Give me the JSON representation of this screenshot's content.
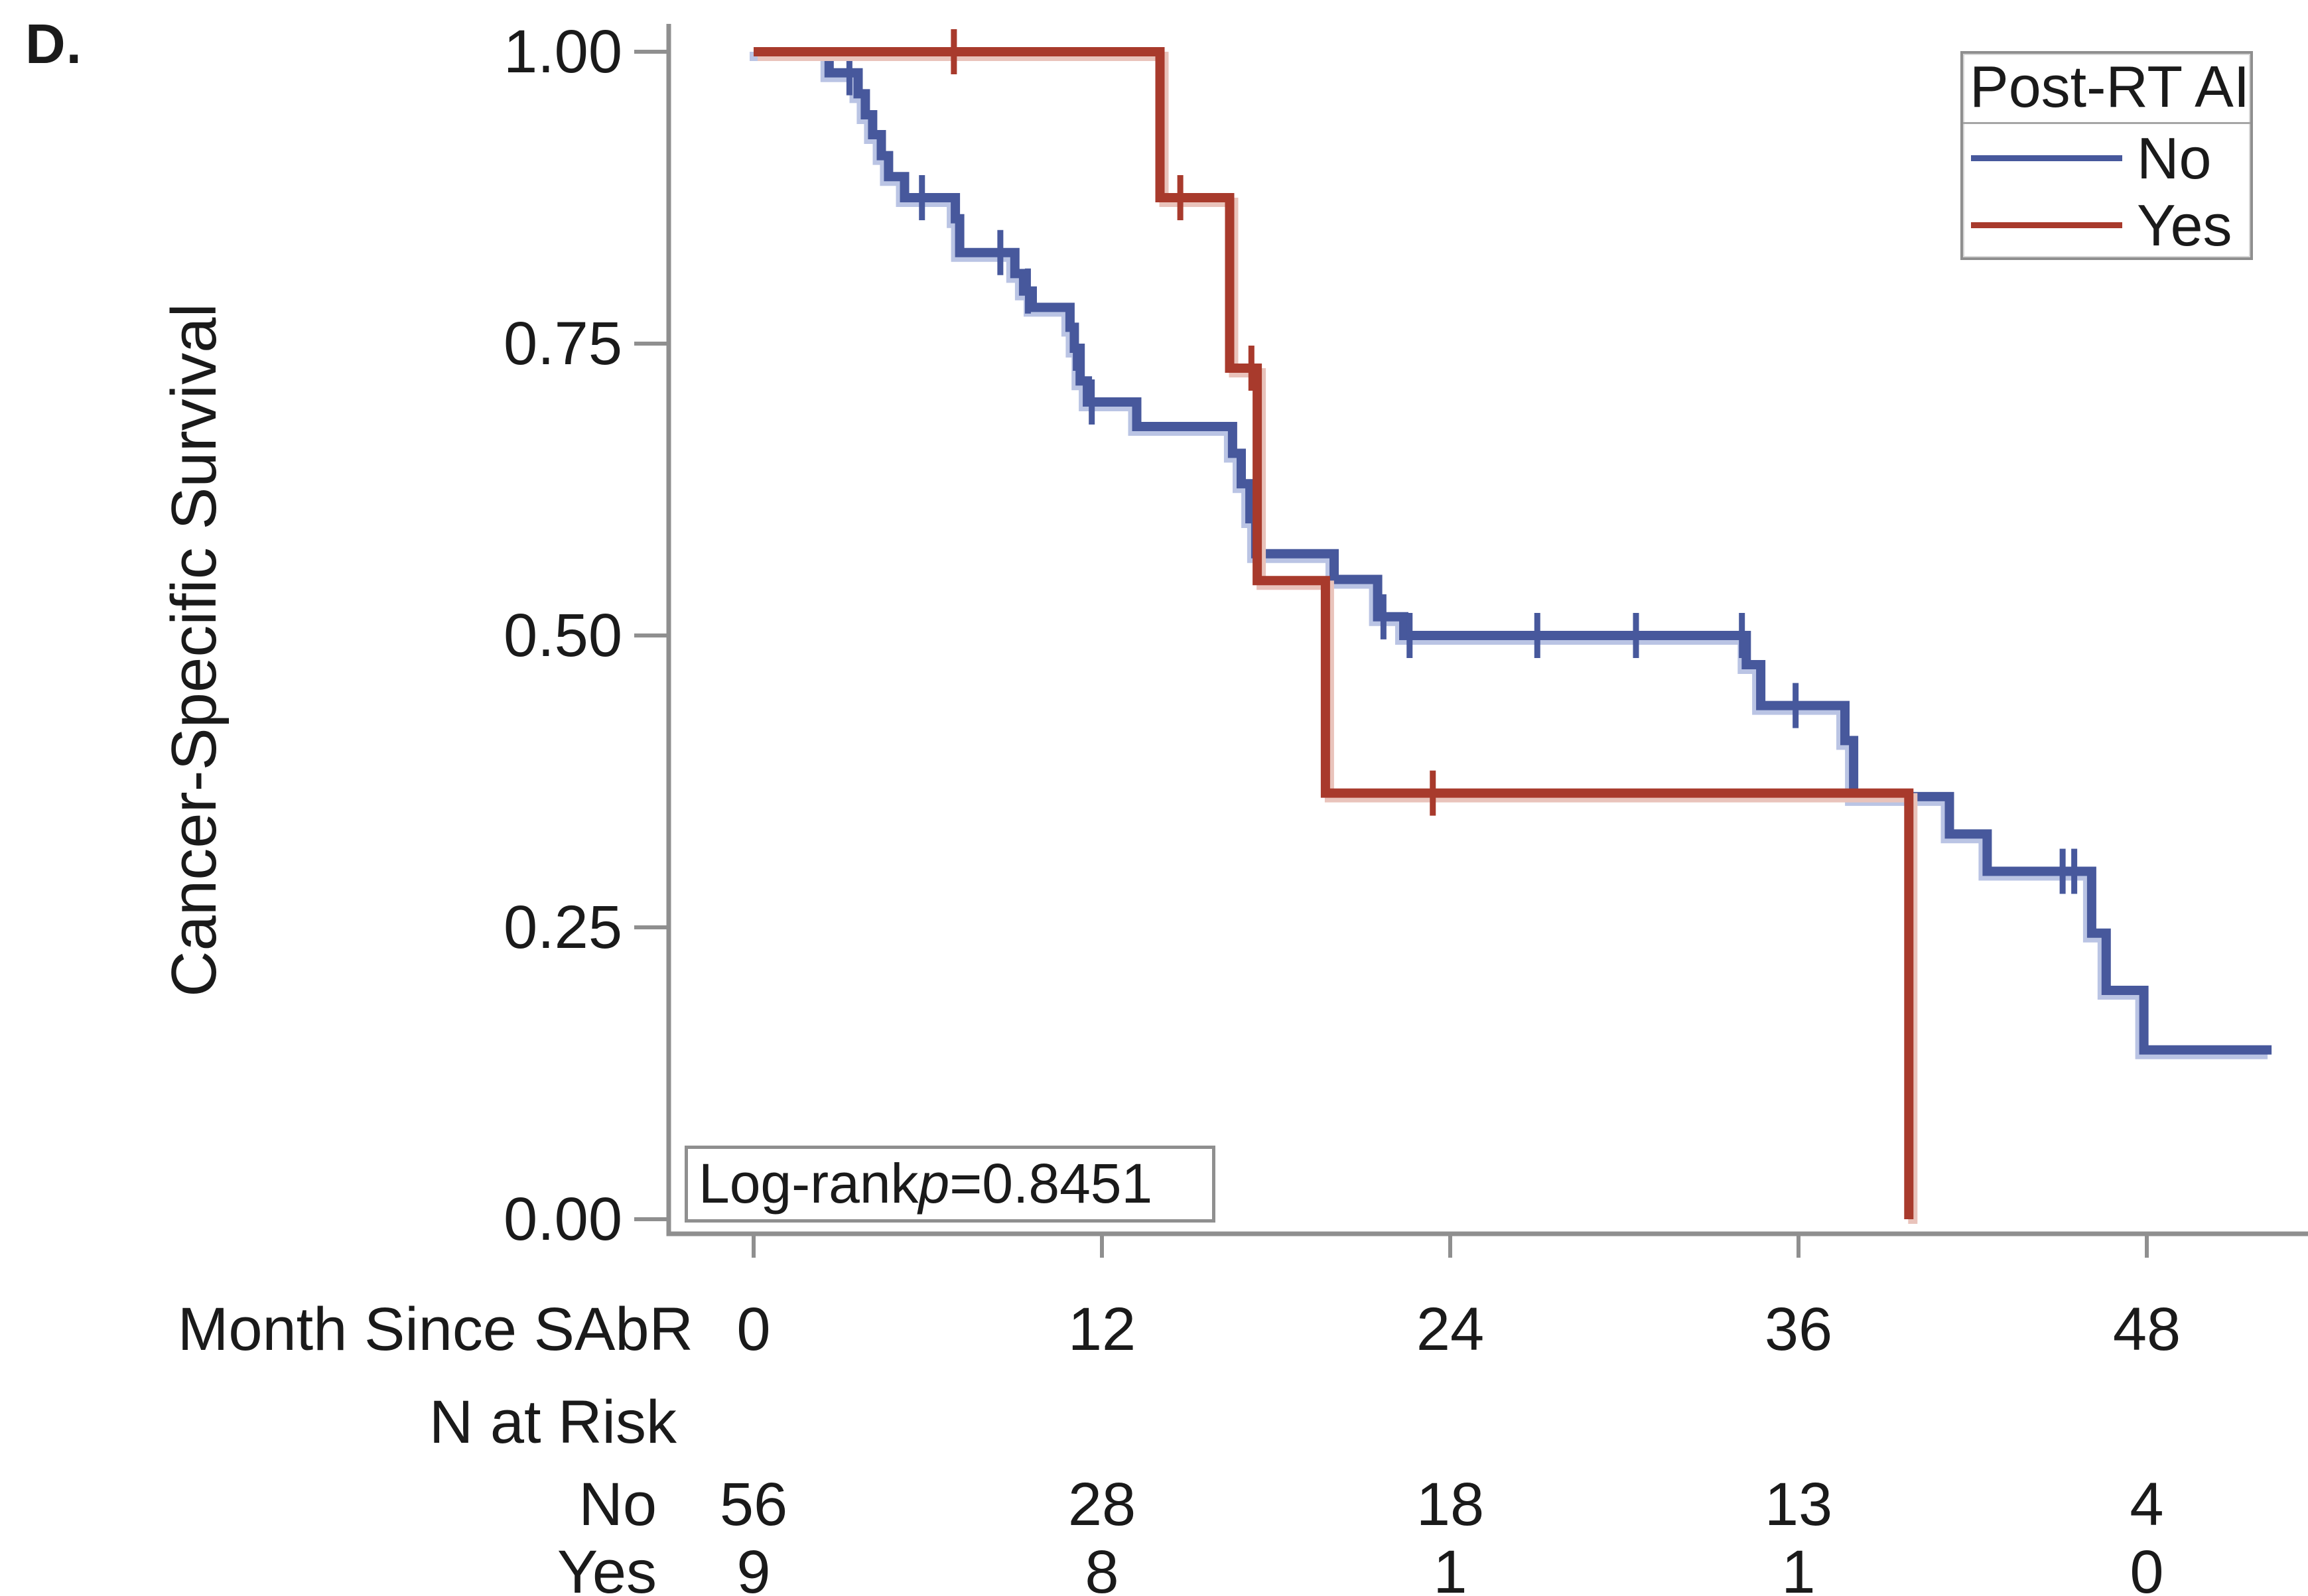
{
  "panel_label": "D.",
  "chart_data": {
    "type": "line",
    "subtype": "kaplan-meier-step",
    "title": "",
    "xlabel": "Month Since SAbR",
    "ylabel": "Cancer-Specific Survival",
    "xlim": [
      0,
      53.6
    ],
    "ylim": [
      0,
      1
    ],
    "x_ticks": [
      0,
      12,
      24,
      36,
      48
    ],
    "x_tick_labels": [
      "0",
      "12",
      "24",
      "36",
      "48"
    ],
    "y_ticks": [
      1.0,
      0.75,
      0.5,
      0.25,
      0.0
    ],
    "y_tick_labels": [
      "1.00",
      "0.75",
      "0.50",
      "0.25",
      "0.00"
    ],
    "grid": false,
    "legend_position": "top-right",
    "series": [
      {
        "name": "No",
        "color": "#47589c",
        "halo_color": "#bac4e4",
        "steps": [
          [
            0,
            1.0
          ],
          [
            2.6,
            0.982
          ],
          [
            3.6,
            0.964
          ],
          [
            3.85,
            0.946
          ],
          [
            4.1,
            0.929
          ],
          [
            4.4,
            0.911
          ],
          [
            4.65,
            0.893
          ],
          [
            5.2,
            0.875
          ],
          [
            6.95,
            0.857
          ],
          [
            7.1,
            0.828
          ],
          [
            9.0,
            0.81
          ],
          [
            9.3,
            0.795
          ],
          [
            9.6,
            0.781
          ],
          [
            10.9,
            0.764
          ],
          [
            11.05,
            0.746
          ],
          [
            11.25,
            0.718
          ],
          [
            11.5,
            0.7
          ],
          [
            13.2,
            0.679
          ],
          [
            16.5,
            0.656
          ],
          [
            16.8,
            0.63
          ],
          [
            17.1,
            0.6
          ],
          [
            17.3,
            0.57
          ],
          [
            20.0,
            0.548
          ],
          [
            21.5,
            0.516
          ],
          [
            22.4,
            0.5
          ],
          [
            34.2,
            0.475
          ],
          [
            34.7,
            0.44
          ],
          [
            37.6,
            0.41
          ],
          [
            37.9,
            0.362
          ],
          [
            41.2,
            0.33
          ],
          [
            42.5,
            0.298
          ],
          [
            46.1,
            0.245
          ],
          [
            46.6,
            0.196
          ],
          [
            47.9,
            0.145
          ]
        ],
        "end_month": 52.3,
        "censors": [
          [
            3.3,
            0.982
          ],
          [
            5.8,
            0.875
          ],
          [
            8.5,
            0.828
          ],
          [
            9.45,
            0.795
          ],
          [
            11.1,
            0.746
          ],
          [
            11.65,
            0.7
          ],
          [
            21.7,
            0.516
          ],
          [
            22.6,
            0.5
          ],
          [
            27.0,
            0.5
          ],
          [
            30.4,
            0.5
          ],
          [
            34.05,
            0.5
          ],
          [
            35.9,
            0.44
          ],
          [
            45.1,
            0.298
          ],
          [
            45.5,
            0.298
          ]
        ]
      },
      {
        "name": "Yes",
        "color": "#a83a2c",
        "halo_color": "#e9c3bb",
        "steps": [
          [
            0,
            1.0
          ],
          [
            14.0,
            0.875
          ],
          [
            16.4,
            0.729
          ],
          [
            17.35,
            0.547
          ],
          [
            19.7,
            0.365
          ],
          [
            39.8,
            0.0
          ]
        ],
        "end_month": null,
        "censors": [
          [
            6.9,
            1.0
          ],
          [
            14.7,
            0.875
          ],
          [
            17.15,
            0.729
          ],
          [
            23.4,
            0.365
          ]
        ]
      }
    ]
  },
  "legend": {
    "title": "Post-RT AI",
    "items": [
      {
        "label": "No",
        "color": "#47589c"
      },
      {
        "label": "Yes",
        "color": "#a83a2c"
      }
    ]
  },
  "annotation": {
    "prefix": "Log-rank",
    "p_symbol": "p",
    "value_text": "=0.8451"
  },
  "risk_table": {
    "time_axis_label": "Month Since SAbR",
    "header": "N at Risk",
    "times": [
      "0",
      "12",
      "24",
      "36",
      "48"
    ],
    "rows": [
      {
        "label": "No",
        "values": [
          "56",
          "28",
          "18",
          "13",
          "4"
        ]
      },
      {
        "label": "Yes",
        "values": [
          "9",
          "8",
          "1",
          "1",
          "0"
        ]
      }
    ]
  },
  "colors": {
    "axis": "#8f8f8f",
    "text": "#1a1a1a",
    "background": "#ffffff"
  }
}
